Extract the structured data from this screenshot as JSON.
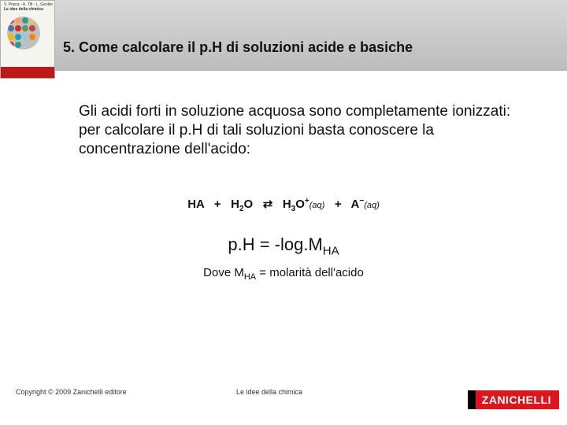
{
  "header": {
    "section_title": "5. Come calcolare il p.H di soluzioni acide e basiche",
    "book_author": "V. Posca - A. Tifi - L. Gentile",
    "book_title": "Le idee della chimica"
  },
  "body": {
    "paragraph": "Gli acidi forti in soluzione acquosa sono completamente ionizzati: per calcolare il p.H di tali soluzioni basta conoscere la concentrazione dell'acido:"
  },
  "equation": {
    "lhs1": "HA",
    "plus": "+",
    "h2o": "H",
    "h2o_sub": "2",
    "h2o_o": "O",
    "arrows": "⇄",
    "h3o": "H",
    "h3o_sub": "3",
    "h3o_o": "O",
    "h3o_sup": "+",
    "aq1": "(aq)",
    "a": "A",
    "a_sup": "−",
    "aq2": "(aq)"
  },
  "formula": {
    "ph": "p.H = -log.M",
    "ph_sub": "HA"
  },
  "dove": {
    "prefix": "Dove M",
    "sub": "HA",
    "suffix": " = molarità dell'acido"
  },
  "footer": {
    "copyright": "Copyright © 2009 Zanichelli editore",
    "center": "Le idee della chimica",
    "logo": "ZANICHELLI"
  },
  "colors": {
    "gumballs": [
      "#e63946",
      "#f4a261",
      "#2a9d8f",
      "#e9c46a",
      "#457b9d",
      "#d62828",
      "#6a994e",
      "#bc4749",
      "#ffb703",
      "#219ebc",
      "#8ecae6",
      "#fb8500",
      "#e63946",
      "#2a9d8f"
    ]
  }
}
